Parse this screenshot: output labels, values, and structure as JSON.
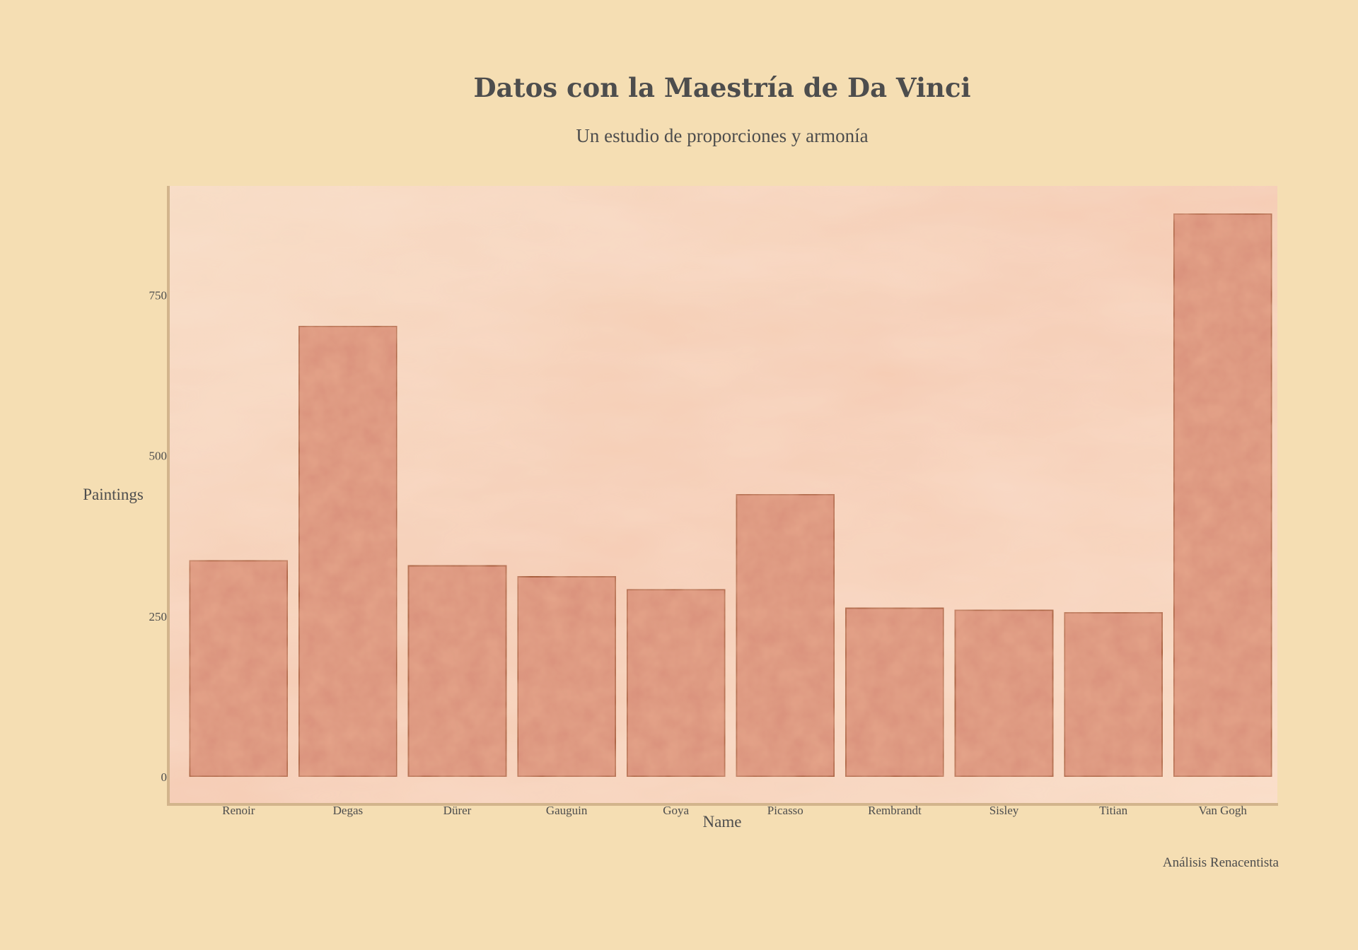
{
  "chart_data": {
    "type": "bar",
    "title": "Datos con la Maestría de Da Vinci",
    "subtitle": "Un estudio de proporciones y armonía",
    "xlabel": "Name",
    "ylabel": "Paintings",
    "caption": "Análisis Renacentista",
    "categories": [
      "Renoir",
      "Degas",
      "Dürer",
      "Gauguin",
      "Goya",
      "Picasso",
      "Rembrandt",
      "Sisley",
      "Titian",
      "Van Gogh"
    ],
    "values": [
      337,
      702,
      329,
      312,
      292,
      440,
      263,
      260,
      256,
      877
    ],
    "yticks": [
      0,
      250,
      500,
      750
    ],
    "ylim": [
      -43,
      920
    ],
    "grid": false,
    "legend": "none",
    "colors": {
      "background": "#f5deb3",
      "panel": "#f8d2b8",
      "bar_fill": "#d9917c",
      "bar_stroke": "#a0522d",
      "axis_line": "#d2b48c",
      "text": "#4d4d4d"
    }
  }
}
